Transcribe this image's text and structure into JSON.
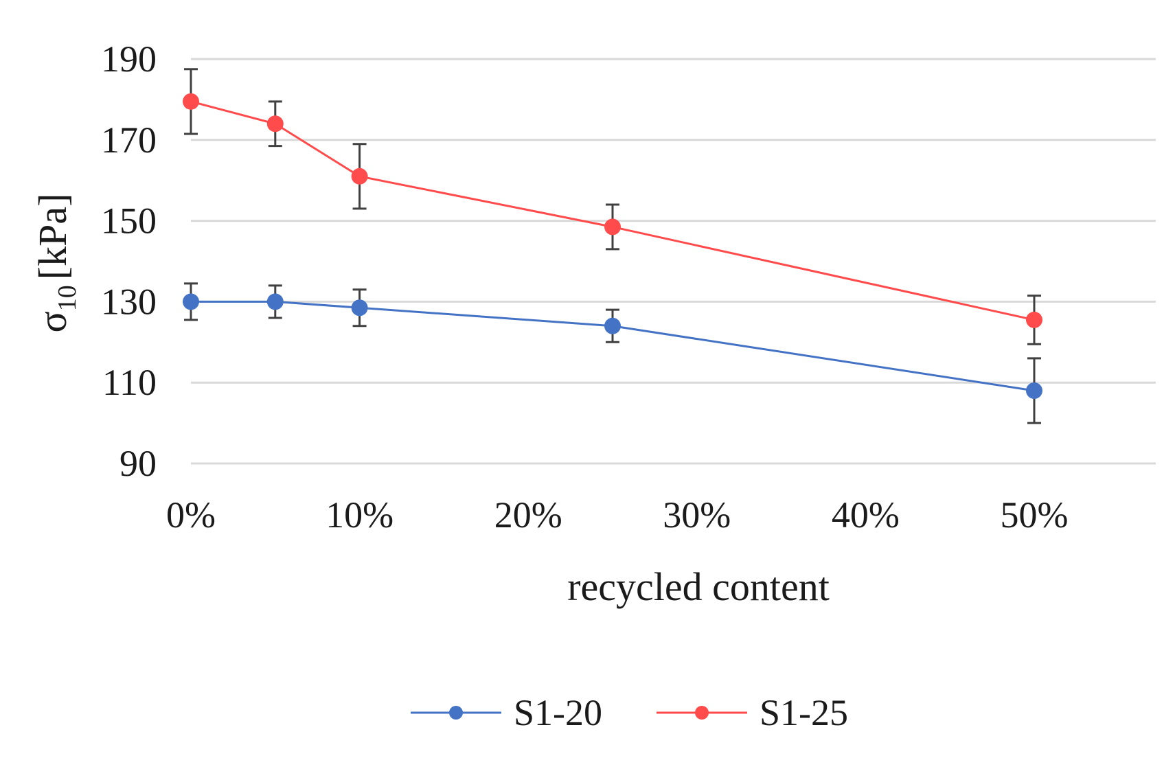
{
  "chart_data": {
    "type": "line",
    "title": "",
    "xlabel": "recycled content",
    "ylabel": "σ",
    "ylabel_subscript": "10",
    "ylabel_unit": "[kPa]",
    "x_ticks": [
      "0%",
      "10%",
      "20%",
      "30%",
      "40%",
      "50%"
    ],
    "x_tick_values": [
      0,
      10,
      20,
      30,
      40,
      50
    ],
    "xlim": [
      0,
      57
    ],
    "y_ticks": [
      "190",
      "170",
      "150",
      "130",
      "110",
      "90"
    ],
    "y_tick_values": [
      190,
      170,
      150,
      130,
      110,
      90
    ],
    "ylim": [
      90,
      190
    ],
    "grid": "horizontal",
    "legend_position": "bottom",
    "series": [
      {
        "name": "S1-20",
        "color": "#4472c4",
        "x": [
          0,
          5,
          10,
          25,
          50
        ],
        "y": [
          130,
          130,
          128.5,
          124,
          108
        ],
        "err": [
          4.5,
          4,
          4.5,
          4,
          8
        ]
      },
      {
        "name": "S1-25",
        "color": "#ff4b4b",
        "x": [
          0,
          5,
          10,
          25,
          50
        ],
        "y": [
          179.5,
          174,
          161,
          148.5,
          125.5
        ],
        "err": [
          8,
          5.5,
          8,
          5.5,
          6
        ]
      }
    ]
  }
}
